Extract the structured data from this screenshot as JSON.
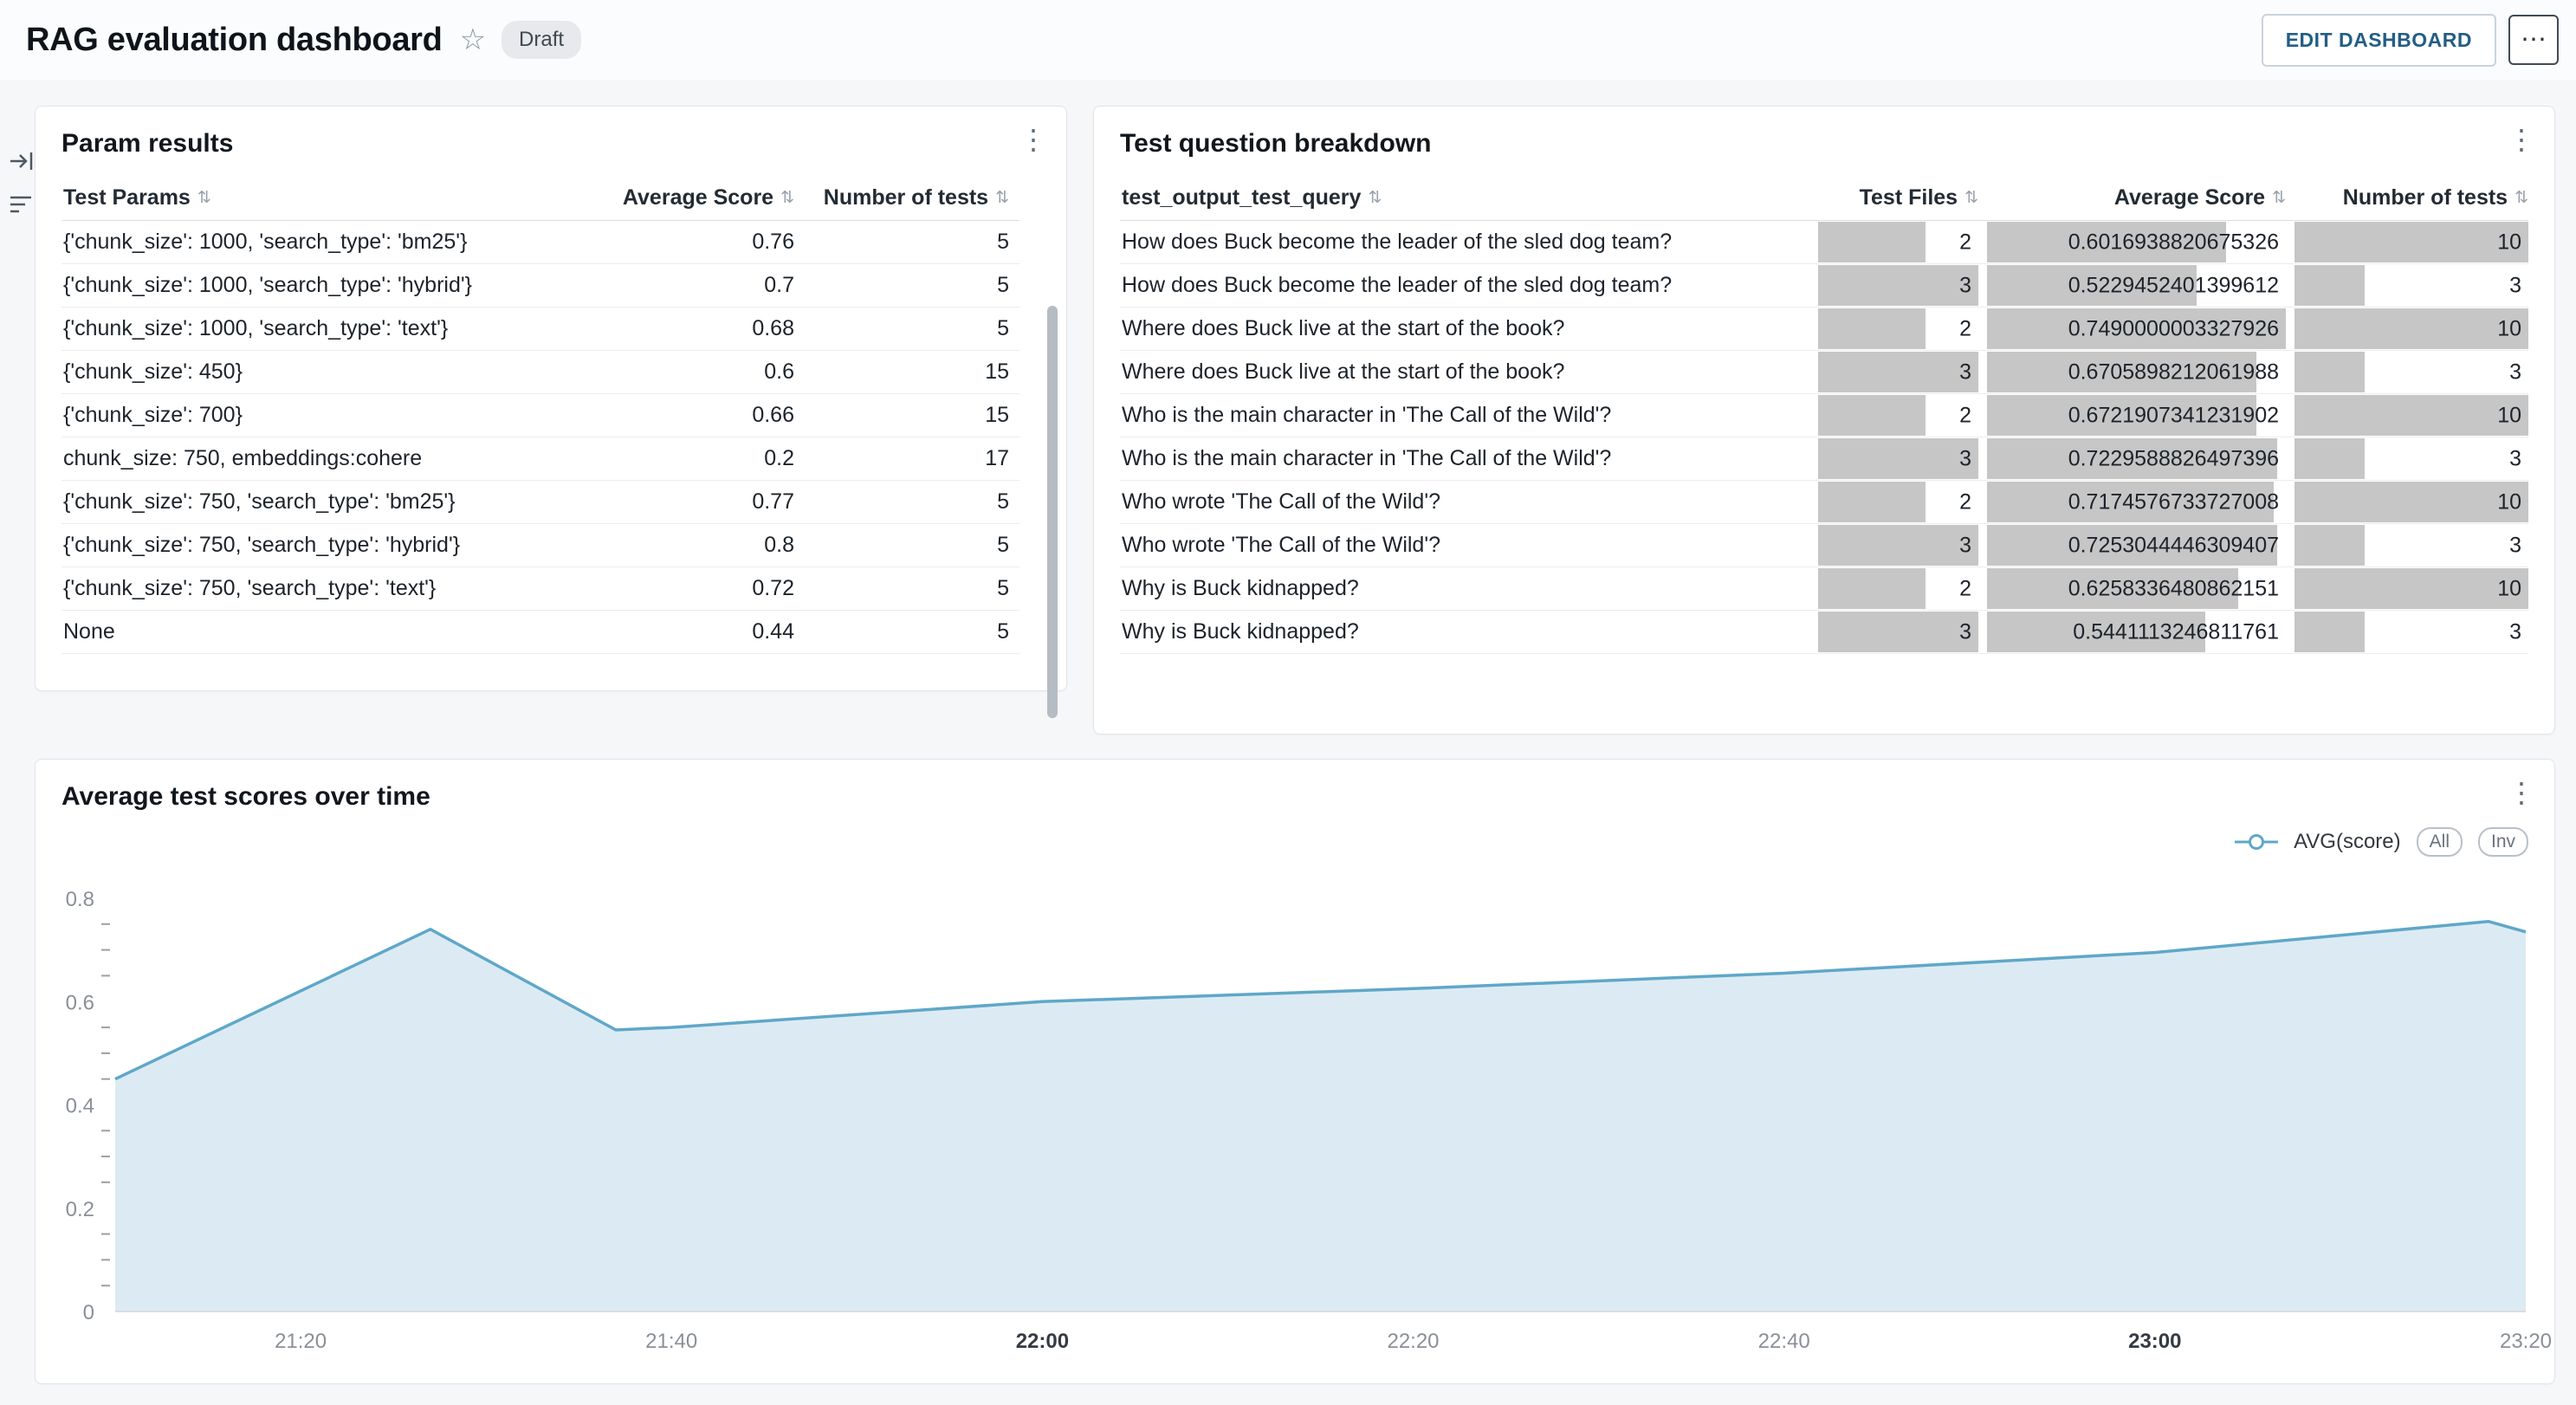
{
  "header": {
    "title": "RAG evaluation dashboard",
    "status_badge": "Draft",
    "edit_button": "EDIT DASHBOARD"
  },
  "param_results": {
    "title": "Param results",
    "columns": [
      "Test Params",
      "Average Score",
      "Number of tests"
    ],
    "rows": [
      {
        "params": "{'chunk_size': 1000, 'search_type': 'bm25'}",
        "avg": "0.76",
        "n": "5"
      },
      {
        "params": "{'chunk_size': 1000, 'search_type': 'hybrid'}",
        "avg": "0.7",
        "n": "5"
      },
      {
        "params": "{'chunk_size': 1000, 'search_type': 'text'}",
        "avg": "0.68",
        "n": "5"
      },
      {
        "params": "{'chunk_size': 450}",
        "avg": "0.6",
        "n": "15"
      },
      {
        "params": "{'chunk_size': 700}",
        "avg": "0.66",
        "n": "15"
      },
      {
        "params": "chunk_size: 750, embeddings:cohere",
        "avg": "0.2",
        "n": "17"
      },
      {
        "params": "{'chunk_size': 750, 'search_type': 'bm25'}",
        "avg": "0.77",
        "n": "5"
      },
      {
        "params": "{'chunk_size': 750, 'search_type': 'hybrid'}",
        "avg": "0.8",
        "n": "5"
      },
      {
        "params": "{'chunk_size': 750, 'search_type': 'text'}",
        "avg": "0.72",
        "n": "5"
      },
      {
        "params": "None",
        "avg": "0.44",
        "n": "5"
      }
    ]
  },
  "question_breakdown": {
    "title": "Test question breakdown",
    "columns": [
      "test_output_test_query",
      "Test Files",
      "Average Score",
      "Number of tests"
    ],
    "rows": [
      {
        "query": "How does Buck become the leader of the sled dog team?",
        "files": "2",
        "avg": "0.6016938820675326",
        "n": "10"
      },
      {
        "query": "How does Buck become the leader of the sled dog team?",
        "files": "3",
        "avg": "0.5229452401399612",
        "n": "3"
      },
      {
        "query": "Where does Buck live at the start of the book?",
        "files": "2",
        "avg": "0.7490000003327926",
        "n": "10"
      },
      {
        "query": "Where does Buck live at the start of the book?",
        "files": "3",
        "avg": "0.6705898212061988",
        "n": "3"
      },
      {
        "query": "Who is the main character in 'The Call of the Wild'?",
        "files": "2",
        "avg": "0.6721907341231902",
        "n": "10"
      },
      {
        "query": "Who is the main character in 'The Call of the Wild'?",
        "files": "3",
        "avg": "0.7229588826497396",
        "n": "3"
      },
      {
        "query": "Who wrote 'The Call of the Wild'?",
        "files": "2",
        "avg": "0.7174576733727008",
        "n": "10"
      },
      {
        "query": "Who wrote 'The Call of the Wild'?",
        "files": "3",
        "avg": "0.7253044446309407",
        "n": "3"
      },
      {
        "query": "Why is Buck kidnapped?",
        "files": "2",
        "avg": "0.6258336480862151",
        "n": "10"
      },
      {
        "query": "Why is Buck kidnapped?",
        "files": "3",
        "avg": "0.5441113246811761",
        "n": "3"
      }
    ]
  },
  "chart_card": {
    "title": "Average test scores over time"
  },
  "chart_data": {
    "type": "area",
    "title": "Average test scores over time",
    "series": [
      {
        "name": "AVG(score)",
        "points": [
          [
            "21:10",
            0.45
          ],
          [
            "21:27",
            0.74
          ],
          [
            "21:37",
            0.545
          ],
          [
            "21:40",
            0.55
          ],
          [
            "22:00",
            0.6
          ],
          [
            "22:20",
            0.625
          ],
          [
            "22:40",
            0.655
          ],
          [
            "23:00",
            0.695
          ],
          [
            "23:18",
            0.755
          ],
          [
            "23:20",
            0.735
          ]
        ]
      }
    ],
    "x_range": [
      "21:10",
      "23:20"
    ],
    "x_ticks": [
      {
        "label": "21:20",
        "emphasis": false
      },
      {
        "label": "21:40",
        "emphasis": false
      },
      {
        "label": "22:00",
        "emphasis": true
      },
      {
        "label": "22:20",
        "emphasis": false
      },
      {
        "label": "22:40",
        "emphasis": false
      },
      {
        "label": "23:00",
        "emphasis": true
      },
      {
        "label": "23:20",
        "emphasis": false
      }
    ],
    "y_range": [
      0,
      0.8
    ],
    "y_ticks": [
      0,
      0.2,
      0.4,
      0.6,
      0.8
    ],
    "y_minor_step": 0.05,
    "grid": false,
    "legend_position": "top-right",
    "legend": {
      "label": "AVG(score)",
      "toggles": [
        "All",
        "Inv"
      ]
    },
    "line_color": "#5fa7c9",
    "fill_color": "#dcebf3"
  }
}
